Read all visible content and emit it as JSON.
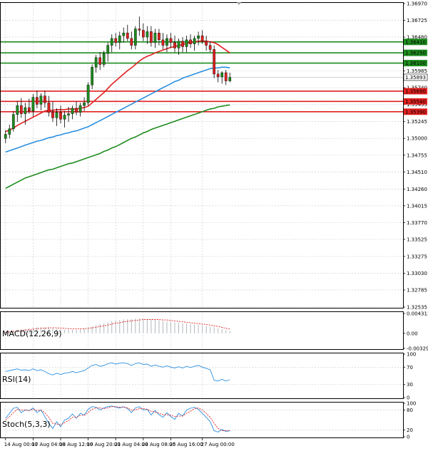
{
  "chart_data": {
    "type": "candlestick",
    "title": "",
    "main_panel": {
      "ylim": [
        1.32535,
        1.3697
      ],
      "y_ticks": [
        "1.36970",
        "1.36725",
        "1.36480",
        "1.36250",
        "1.35985",
        "1.35740",
        "1.35495",
        "1.35245",
        "1.35000",
        "1.34755",
        "1.34510",
        "1.34260",
        "1.34015",
        "1.33770",
        "1.33525",
        "1.33275",
        "1.33030",
        "1.32785",
        "1.32535"
      ],
      "y_tick_values": [
        1.3697,
        1.36725,
        1.3648,
        1.3625,
        1.35985,
        1.3574,
        1.35495,
        1.35245,
        1.35,
        1.34755,
        1.3451,
        1.3426,
        1.34015,
        1.3377,
        1.33525,
        1.33275,
        1.3303,
        1.32785,
        1.32535
      ],
      "current_price": 1.35893,
      "current_price_label": "1.35893",
      "levels": [
        {
          "value": 1.3641,
          "label": "1.36410",
          "color": "#1e8c1e"
        },
        {
          "value": 1.3625,
          "label": "1.36250",
          "color": "#1e8c1e"
        },
        {
          "value": 1.361,
          "label": "1.36100",
          "color": "#1e8c1e"
        },
        {
          "value": 1.3569,
          "label": "1.35690",
          "color": "#e02020"
        },
        {
          "value": 1.3554,
          "label": "1.35540",
          "color": "#e02020"
        },
        {
          "value": 1.3539,
          "label": "1.35390",
          "color": "#e02020"
        }
      ],
      "candles": [
        {
          "o": 1.35,
          "h": 1.3512,
          "l": 1.3493,
          "c": 1.3506
        },
        {
          "o": 1.3506,
          "h": 1.352,
          "l": 1.35,
          "c": 1.3514
        },
        {
          "o": 1.3514,
          "h": 1.354,
          "l": 1.351,
          "c": 1.3535
        },
        {
          "o": 1.3535,
          "h": 1.3555,
          "l": 1.3524,
          "c": 1.3548
        },
        {
          "o": 1.3548,
          "h": 1.3559,
          "l": 1.353,
          "c": 1.3536
        },
        {
          "o": 1.3536,
          "h": 1.3552,
          "l": 1.352,
          "c": 1.3545
        },
        {
          "o": 1.3545,
          "h": 1.3558,
          "l": 1.3536,
          "c": 1.354
        },
        {
          "o": 1.354,
          "h": 1.3565,
          "l": 1.3532,
          "c": 1.356
        },
        {
          "o": 1.356,
          "h": 1.357,
          "l": 1.3544,
          "c": 1.355
        },
        {
          "o": 1.355,
          "h": 1.3566,
          "l": 1.3541,
          "c": 1.3562
        },
        {
          "o": 1.3562,
          "h": 1.357,
          "l": 1.3545,
          "c": 1.3552
        },
        {
          "o": 1.3552,
          "h": 1.3562,
          "l": 1.3532,
          "c": 1.3538
        },
        {
          "o": 1.3538,
          "h": 1.3554,
          "l": 1.3524,
          "c": 1.353
        },
        {
          "o": 1.353,
          "h": 1.3544,
          "l": 1.3518,
          "c": 1.3538
        },
        {
          "o": 1.3538,
          "h": 1.3548,
          "l": 1.3522,
          "c": 1.3528
        },
        {
          "o": 1.3528,
          "h": 1.354,
          "l": 1.3516,
          "c": 1.3534
        },
        {
          "o": 1.3534,
          "h": 1.3546,
          "l": 1.3524,
          "c": 1.3536
        },
        {
          "o": 1.3536,
          "h": 1.3548,
          "l": 1.3528,
          "c": 1.3544
        },
        {
          "o": 1.3544,
          "h": 1.3554,
          "l": 1.3534,
          "c": 1.3538
        },
        {
          "o": 1.3538,
          "h": 1.3552,
          "l": 1.3532,
          "c": 1.3548
        },
        {
          "o": 1.3548,
          "h": 1.356,
          "l": 1.354,
          "c": 1.3552
        },
        {
          "o": 1.3552,
          "h": 1.3582,
          "l": 1.3548,
          "c": 1.3578
        },
        {
          "o": 1.3578,
          "h": 1.3608,
          "l": 1.3572,
          "c": 1.3604
        },
        {
          "o": 1.3604,
          "h": 1.3622,
          "l": 1.3596,
          "c": 1.3618
        },
        {
          "o": 1.3618,
          "h": 1.3626,
          "l": 1.36,
          "c": 1.3608
        },
        {
          "o": 1.3608,
          "h": 1.3628,
          "l": 1.3604,
          "c": 1.3624
        },
        {
          "o": 1.3624,
          "h": 1.364,
          "l": 1.3612,
          "c": 1.3636
        },
        {
          "o": 1.3636,
          "h": 1.3652,
          "l": 1.3626,
          "c": 1.3646
        },
        {
          "o": 1.3646,
          "h": 1.3654,
          "l": 1.3634,
          "c": 1.364
        },
        {
          "o": 1.364,
          "h": 1.3656,
          "l": 1.363,
          "c": 1.365
        },
        {
          "o": 1.365,
          "h": 1.3662,
          "l": 1.364,
          "c": 1.3654
        },
        {
          "o": 1.3654,
          "h": 1.3666,
          "l": 1.3642,
          "c": 1.3646
        },
        {
          "o": 1.3646,
          "h": 1.3656,
          "l": 1.363,
          "c": 1.3636
        },
        {
          "o": 1.3636,
          "h": 1.3664,
          "l": 1.363,
          "c": 1.366
        },
        {
          "o": 1.366,
          "h": 1.3678,
          "l": 1.365,
          "c": 1.3658
        },
        {
          "o": 1.3658,
          "h": 1.3668,
          "l": 1.3642,
          "c": 1.3648
        },
        {
          "o": 1.3648,
          "h": 1.3664,
          "l": 1.3638,
          "c": 1.3656
        },
        {
          "o": 1.3656,
          "h": 1.3664,
          "l": 1.3634,
          "c": 1.364
        },
        {
          "o": 1.364,
          "h": 1.366,
          "l": 1.3632,
          "c": 1.3654
        },
        {
          "o": 1.3654,
          "h": 1.366,
          "l": 1.3636,
          "c": 1.3644
        },
        {
          "o": 1.3644,
          "h": 1.3654,
          "l": 1.363,
          "c": 1.3636
        },
        {
          "o": 1.3636,
          "h": 1.3652,
          "l": 1.3626,
          "c": 1.3646
        },
        {
          "o": 1.3646,
          "h": 1.3654,
          "l": 1.3632,
          "c": 1.364
        },
        {
          "o": 1.364,
          "h": 1.365,
          "l": 1.3626,
          "c": 1.3632
        },
        {
          "o": 1.3632,
          "h": 1.3646,
          "l": 1.3622,
          "c": 1.3642
        },
        {
          "o": 1.3642,
          "h": 1.3648,
          "l": 1.3626,
          "c": 1.3634
        },
        {
          "o": 1.3634,
          "h": 1.365,
          "l": 1.3626,
          "c": 1.3644
        },
        {
          "o": 1.3644,
          "h": 1.3652,
          "l": 1.3632,
          "c": 1.3638
        },
        {
          "o": 1.3638,
          "h": 1.365,
          "l": 1.3628,
          "c": 1.3646
        },
        {
          "o": 1.3646,
          "h": 1.3656,
          "l": 1.3636,
          "c": 1.365
        },
        {
          "o": 1.365,
          "h": 1.3658,
          "l": 1.3638,
          "c": 1.3642
        },
        {
          "o": 1.3642,
          "h": 1.365,
          "l": 1.3628,
          "c": 1.3636
        },
        {
          "o": 1.3636,
          "h": 1.3642,
          "l": 1.3626,
          "c": 1.363
        },
        {
          "o": 1.363,
          "h": 1.3636,
          "l": 1.3588,
          "c": 1.3594
        },
        {
          "o": 1.3594,
          "h": 1.36,
          "l": 1.3582,
          "c": 1.359
        },
        {
          "o": 1.359,
          "h": 1.3598,
          "l": 1.358,
          "c": 1.3596
        },
        {
          "o": 1.3596,
          "h": 1.36,
          "l": 1.3578,
          "c": 1.3584
        },
        {
          "o": 1.3584,
          "h": 1.3596,
          "l": 1.3582,
          "c": 1.3589
        }
      ],
      "ma_fast": [
        1.351,
        1.3512,
        1.3515,
        1.3519,
        1.3522,
        1.3525,
        1.3528,
        1.3531,
        1.3534,
        1.3537,
        1.354,
        1.3541,
        1.3541,
        1.3542,
        1.3542,
        1.3542,
        1.3543,
        1.3543,
        1.3543,
        1.3544,
        1.3545,
        1.3547,
        1.3552,
        1.3557,
        1.3562,
        1.3567,
        1.3573,
        1.3579,
        1.3584,
        1.3589,
        1.3594,
        1.3599,
        1.3603,
        1.3608,
        1.3613,
        1.3617,
        1.362,
        1.3622,
        1.3625,
        1.3627,
        1.3629,
        1.3631,
        1.3633,
        1.3634,
        1.3636,
        1.3637,
        1.3639,
        1.364,
        1.3641,
        1.3642,
        1.3642,
        1.3642,
        1.3641,
        1.364,
        1.3637,
        1.3633,
        1.3629,
        1.3625
      ],
      "ma_medium": [
        1.348,
        1.3482,
        1.3484,
        1.3486,
        1.3488,
        1.349,
        1.3492,
        1.3494,
        1.3496,
        1.3497,
        1.3499,
        1.3501,
        1.3502,
        1.3504,
        1.3505,
        1.3507,
        1.3508,
        1.351,
        1.3511,
        1.3513,
        1.3515,
        1.3517,
        1.352,
        1.3523,
        1.3526,
        1.3529,
        1.3532,
        1.3535,
        1.3538,
        1.3541,
        1.3544,
        1.3547,
        1.355,
        1.3553,
        1.3556,
        1.3559,
        1.3562,
        1.3565,
        1.3568,
        1.3571,
        1.3574,
        1.3577,
        1.358,
        1.3583,
        1.3585,
        1.3588,
        1.359,
        1.3592,
        1.3594,
        1.3596,
        1.3598,
        1.36,
        1.3602,
        1.3603,
        1.3603,
        1.3604,
        1.3604,
        1.3603
      ],
      "ma_slow": [
        1.3427,
        1.343,
        1.3433,
        1.3436,
        1.3439,
        1.3442,
        1.3444,
        1.3446,
        1.3448,
        1.345,
        1.3452,
        1.3454,
        1.3455,
        1.3457,
        1.3459,
        1.3461,
        1.3463,
        1.3464,
        1.3466,
        1.3468,
        1.347,
        1.3472,
        1.3474,
        1.3476,
        1.3478,
        1.3481,
        1.3483,
        1.3486,
        1.3488,
        1.3491,
        1.3494,
        1.3497,
        1.35,
        1.3502,
        1.3505,
        1.3508,
        1.351,
        1.3513,
        1.3515,
        1.3517,
        1.3519,
        1.3521,
        1.3523,
        1.3525,
        1.3527,
        1.3529,
        1.3531,
        1.3533,
        1.3535,
        1.3537,
        1.3539,
        1.3541,
        1.3543,
        1.3544,
        1.3546,
        1.3547,
        1.3548,
        1.3549
      ]
    },
    "x_ticks": [
      {
        "label": "14 Aug 00:00",
        "index": 0
      },
      {
        "label": "17 Aug 04:00",
        "index": 7
      },
      {
        "label": "18 Aug 12:00",
        "index": 14
      },
      {
        "label": "19 Aug 20:00",
        "index": 21
      },
      {
        "label": "21 Aug 04:00",
        "index": 28
      },
      {
        "label": "24 Aug 08:00",
        "index": 35
      },
      {
        "label": "25 Aug 16:00",
        "index": 42
      },
      {
        "label": "27 Aug 00:00",
        "index": 50
      }
    ],
    "macd": {
      "label": "MACD(12,26,9)",
      "ylim": [
        -0.00329,
        0.004312
      ],
      "y_ticks": [
        "0.004312",
        "0.00",
        "-0.00329"
      ],
      "y_tick_values": [
        0.004312,
        0.0,
        -0.00329
      ],
      "hist": [
        0.0004,
        0.0005,
        0.0006,
        0.0008,
        0.0009,
        0.001,
        0.0011,
        0.0012,
        0.0013,
        0.0013,
        0.0013,
        0.0012,
        0.0011,
        0.001,
        0.0009,
        0.0008,
        0.0008,
        0.0008,
        0.0008,
        0.0009,
        0.001,
        0.0012,
        0.0015,
        0.0018,
        0.002,
        0.0022,
        0.0024,
        0.0026,
        0.0028,
        0.0029,
        0.003,
        0.0031,
        0.0031,
        0.0032,
        0.0032,
        0.0032,
        0.0031,
        0.003,
        0.0029,
        0.0028,
        0.0027,
        0.0026,
        0.0025,
        0.0024,
        0.0023,
        0.0022,
        0.0021,
        0.002,
        0.0019,
        0.0018,
        0.0017,
        0.0016,
        0.0014,
        0.0013,
        0.0011,
        0.0009,
        0.0007,
        0.0005
      ],
      "signal": [
        0.0002,
        0.0003,
        0.0004,
        0.0005,
        0.0006,
        0.0007,
        0.0008,
        0.0009,
        0.001,
        0.0011,
        0.0011,
        0.0012,
        0.0012,
        0.0012,
        0.0011,
        0.0011,
        0.001,
        0.001,
        0.001,
        0.001,
        0.001,
        0.0011,
        0.0012,
        0.0013,
        0.0015,
        0.0016,
        0.0018,
        0.002,
        0.0022,
        0.0023,
        0.0025,
        0.0026,
        0.0027,
        0.0028,
        0.0029,
        0.003,
        0.003,
        0.003,
        0.003,
        0.003,
        0.0029,
        0.0029,
        0.0028,
        0.0027,
        0.0026,
        0.0025,
        0.0024,
        0.0023,
        0.0022,
        0.0021,
        0.002,
        0.0019,
        0.0018,
        0.0016,
        0.0015,
        0.0013,
        0.0011,
        0.0009
      ]
    },
    "rsi": {
      "label": "RSI(14)",
      "ylim": [
        0,
        100
      ],
      "y_ticks": [
        "100",
        "70",
        "30",
        "0"
      ],
      "y_tick_values": [
        100,
        70,
        30,
        0
      ],
      "values": [
        60,
        62,
        64,
        66,
        63,
        64,
        62,
        66,
        62,
        64,
        60,
        55,
        52,
        56,
        53,
        56,
        57,
        60,
        57,
        60,
        62,
        68,
        74,
        76,
        72,
        74,
        78,
        80,
        77,
        79,
        80,
        78,
        74,
        78,
        80,
        76,
        77,
        72,
        75,
        72,
        70,
        73,
        70,
        68,
        71,
        68,
        72,
        69,
        72,
        74,
        70,
        67,
        64,
        40,
        38,
        42,
        38,
        41
      ]
    },
    "stoch": {
      "label": "Stoch(5,3,3)",
      "ylim": [
        0,
        100
      ],
      "y_ticks": [
        "100",
        "80",
        "20",
        "0"
      ],
      "y_tick_values": [
        100,
        80,
        20,
        0
      ],
      "k": [
        55,
        70,
        85,
        88,
        72,
        80,
        78,
        86,
        72,
        80,
        60,
        40,
        25,
        45,
        30,
        50,
        55,
        68,
        55,
        70,
        65,
        82,
        90,
        88,
        80,
        86,
        90,
        92,
        88,
        86,
        90,
        84,
        72,
        86,
        90,
        80,
        82,
        65,
        78,
        66,
        58,
        72,
        60,
        52,
        70,
        62,
        80,
        85,
        88,
        82,
        70,
        58,
        45,
        18,
        14,
        22,
        16,
        18
      ],
      "d": [
        50,
        60,
        72,
        82,
        80,
        80,
        78,
        82,
        78,
        80,
        72,
        58,
        40,
        38,
        36,
        42,
        48,
        58,
        58,
        64,
        64,
        72,
        82,
        86,
        86,
        84,
        86,
        90,
        90,
        88,
        88,
        86,
        80,
        80,
        84,
        84,
        82,
        76,
        74,
        70,
        66,
        66,
        64,
        60,
        62,
        62,
        70,
        76,
        84,
        86,
        80,
        70,
        58,
        40,
        25,
        18,
        18,
        18
      ]
    }
  }
}
